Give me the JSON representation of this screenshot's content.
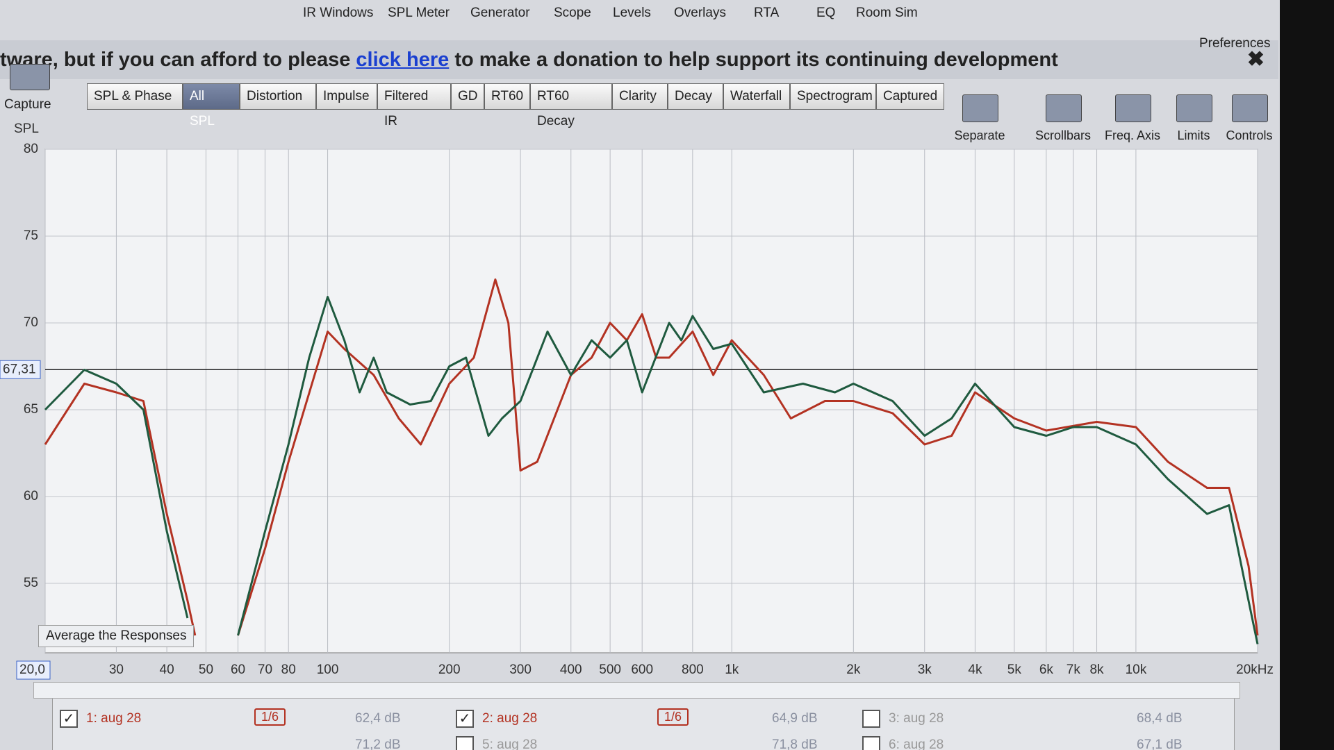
{
  "toolbar": [
    "IR Windows",
    "SPL Meter",
    "Generator",
    "Scope",
    "Levels",
    "Overlays",
    "RTA",
    "EQ",
    "Room Sim",
    "Preferences"
  ],
  "banner": {
    "before": "tware, but if you can afford to please",
    "link": "click here",
    "after": "to make a donation to help support its continuing development"
  },
  "capture": "Capture",
  "tabs": [
    "SPL & Phase",
    "All SPL",
    "Distortion",
    "Impulse",
    "Filtered IR",
    "GD",
    "RT60",
    "RT60 Decay",
    "Clarity",
    "Decay",
    "Waterfall",
    "Spectrogram",
    "Captured"
  ],
  "tools": [
    "Separate",
    "Scrollbars",
    "Freq. Axis",
    "Limits",
    "Controls"
  ],
  "average_button": "Average the Responses",
  "chart_data": {
    "type": "line",
    "ylabel": "SPL",
    "xscale": "log",
    "xlim": [
      20,
      20000
    ],
    "ylim": [
      51,
      80
    ],
    "yticks": [
      55,
      60,
      65,
      70,
      75,
      80
    ],
    "xticks": [
      {
        "value": 20,
        "label": "20,0"
      },
      30,
      40,
      50,
      60,
      70,
      80,
      100,
      200,
      300,
      400,
      500,
      600,
      800,
      {
        "value": 1000,
        "label": "1k"
      },
      {
        "value": 2000,
        "label": "2k"
      },
      {
        "value": 3000,
        "label": "3k"
      },
      {
        "value": 4000,
        "label": "4k"
      },
      {
        "value": 5000,
        "label": "5k"
      },
      {
        "value": 6000,
        "label": "6k"
      },
      {
        "value": 7000,
        "label": "7k"
      },
      {
        "value": 8000,
        "label": "8k"
      },
      {
        "value": 10000,
        "label": "10k"
      },
      {
        "value": 20000,
        "label": "20kHz"
      }
    ],
    "grid": true,
    "cursor": {
      "value": 67.31,
      "label": "67,31"
    },
    "series": [
      {
        "name": "1: aug 28",
        "color": "#1f5a3f",
        "x": [
          20,
          25,
          30,
          35,
          40,
          45,
          50,
          60,
          70,
          80,
          90,
          100,
          110,
          120,
          130,
          140,
          160,
          180,
          200,
          220,
          250,
          270,
          300,
          350,
          400,
          450,
          500,
          550,
          600,
          700,
          750,
          800,
          900,
          1000,
          1200,
          1500,
          1800,
          2000,
          2500,
          3000,
          3500,
          4000,
          5000,
          6000,
          7000,
          8000,
          10000,
          12000,
          15000,
          17000,
          19000,
          20000
        ],
        "values": [
          65,
          67.3,
          66.5,
          65,
          58,
          53,
          null,
          52,
          58,
          63,
          68,
          71.5,
          69,
          66,
          68,
          66,
          65.3,
          65.5,
          67.5,
          68,
          63.5,
          64.5,
          65.5,
          69.5,
          67,
          69,
          68,
          69,
          66,
          70,
          69,
          70.4,
          68.5,
          68.8,
          66,
          66.5,
          66,
          66.5,
          65.5,
          63.5,
          64.5,
          66.5,
          64,
          63.5,
          64,
          64,
          63,
          61,
          59,
          59.5,
          54,
          51.5
        ]
      },
      {
        "name": "2: aug 28",
        "color": "#b33222",
        "x": [
          20,
          25,
          30,
          35,
          40,
          45,
          47,
          50,
          60,
          70,
          80,
          100,
          110,
          130,
          150,
          170,
          200,
          230,
          260,
          280,
          300,
          330,
          400,
          450,
          500,
          550,
          600,
          650,
          700,
          800,
          900,
          1000,
          1200,
          1400,
          1700,
          2000,
          2500,
          3000,
          3500,
          4000,
          5000,
          6000,
          8000,
          10000,
          12000,
          15000,
          17000,
          19000,
          20000
        ],
        "values": [
          63,
          66.5,
          66,
          65.5,
          59,
          54,
          52,
          null,
          52,
          57,
          62,
          69.5,
          68.5,
          67,
          64.5,
          63,
          66.5,
          68,
          72.5,
          70,
          61.5,
          62,
          67,
          68,
          70,
          69,
          70.5,
          68,
          68,
          69.5,
          67,
          69,
          67,
          64.5,
          65.5,
          65.5,
          64.8,
          63,
          63.5,
          66,
          64.5,
          63.8,
          64.3,
          64,
          62,
          60.5,
          60.5,
          56,
          52
        ]
      }
    ]
  },
  "legend_rows": [
    [
      {
        "name": "1: aug 28",
        "smoothing": "1/6",
        "level": "62,4 dB"
      },
      {
        "name": "2: aug 28",
        "smoothing": "1/6",
        "level": "64,9 dB"
      },
      {
        "name": "3: aug 28",
        "level": "68,4 dB"
      }
    ],
    [
      {
        "level": "71,2 dB"
      },
      {
        "name": "5: aug 28",
        "level": "71,8 dB"
      },
      {
        "name": "6: aug 28",
        "level": "67,1 dB"
      }
    ]
  ]
}
